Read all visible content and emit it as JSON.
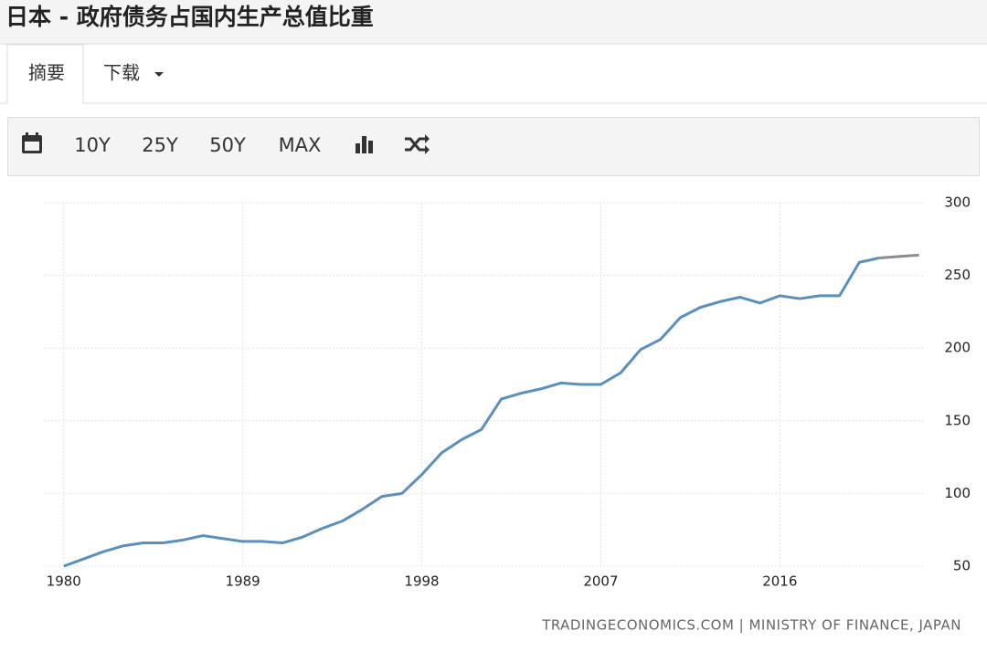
{
  "ui": {
    "title": "日本 - 政府债务占国内生产总值比重",
    "tabs": [
      "摘要",
      "下载"
    ],
    "ranges": [
      "10Y",
      "25Y",
      "50Y",
      "MAX"
    ],
    "source": "TRADINGECONOMICS.COM | MINISTRY OF FINANCE, JAPAN"
  },
  "chart_data": {
    "type": "line",
    "x": [
      1980,
      1981,
      1982,
      1983,
      1984,
      1985,
      1986,
      1987,
      1988,
      1989,
      1990,
      1991,
      1992,
      1993,
      1994,
      1995,
      1996,
      1997,
      1998,
      1999,
      2000,
      2001,
      2002,
      2003,
      2004,
      2005,
      2006,
      2007,
      2008,
      2009,
      2010,
      2011,
      2012,
      2013,
      2014,
      2015,
      2016,
      2017,
      2018,
      2019,
      2020,
      2021,
      2022,
      2023
    ],
    "series": [
      {
        "color": "#5b8fbd",
        "values": [
          50,
          55,
          60,
          64,
          66,
          66,
          68,
          71,
          69,
          67,
          67,
          66,
          70,
          76,
          81,
          89,
          98,
          100,
          113,
          128,
          137,
          144,
          165,
          169,
          172,
          176,
          175,
          175,
          183,
          199,
          206,
          221,
          228,
          232,
          235,
          231,
          236,
          234,
          236,
          236,
          259,
          262,
          null,
          null
        ]
      },
      {
        "color": "#8c8c8c",
        "values": [
          null,
          null,
          null,
          null,
          null,
          null,
          null,
          null,
          null,
          null,
          null,
          null,
          null,
          null,
          null,
          null,
          null,
          null,
          null,
          null,
          null,
          null,
          null,
          null,
          null,
          null,
          null,
          null,
          null,
          null,
          null,
          null,
          null,
          null,
          null,
          null,
          null,
          null,
          null,
          null,
          null,
          262,
          263,
          264
        ]
      }
    ],
    "xlim": [
      1979,
      2023.2
    ],
    "xticks": [
      1980,
      1989,
      1998,
      2007,
      2016
    ],
    "ylim": [
      50,
      300
    ],
    "yticks": [
      50,
      100,
      150,
      200,
      250,
      300
    ],
    "grid": true
  }
}
